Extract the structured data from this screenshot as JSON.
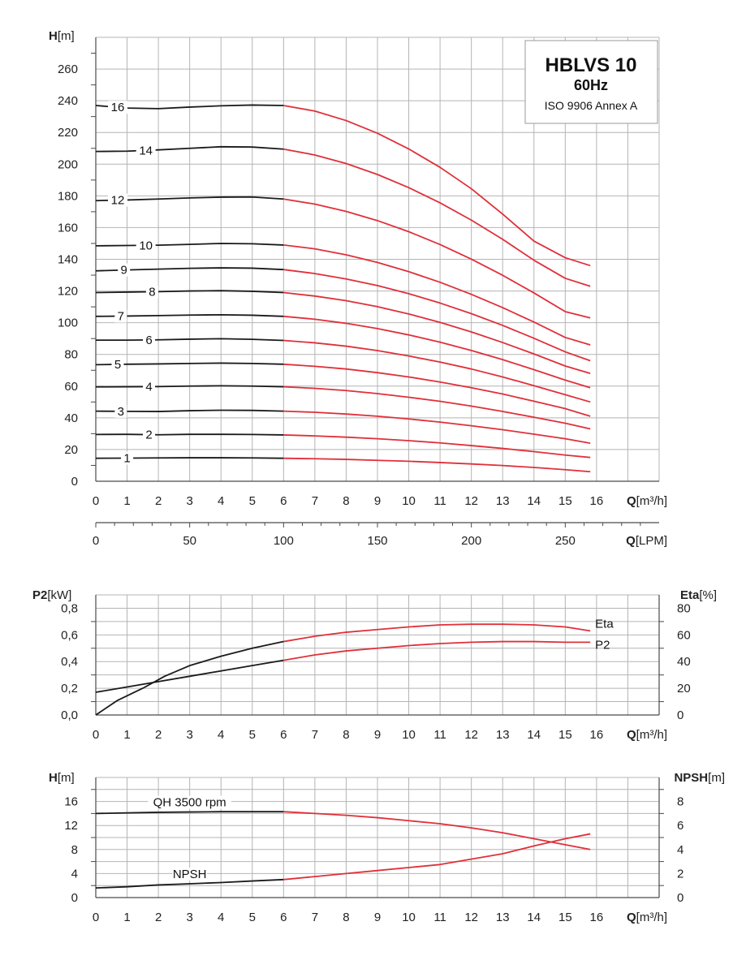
{
  "colors": {
    "shutoff": "#1a1a1a",
    "operating": "#e0303a"
  },
  "title": {
    "model": "HBLVS 10",
    "freq": "60Hz",
    "standard": "ISO 9906 Annex A"
  },
  "axis_labels": {
    "top_y": {
      "sym": "H",
      "unit": "[m]"
    },
    "top_x": {
      "sym": "Q",
      "unit": "[m³/h]"
    },
    "lpm_x": {
      "sym": "Q",
      "unit": "[LPM]"
    },
    "mid_left": {
      "sym": "P2",
      "unit": "[kW]"
    },
    "mid_right": {
      "sym": "Eta",
      "unit": "[%]"
    },
    "mid_x": {
      "sym": "Q",
      "unit": "[m³/h]"
    },
    "bot_left": {
      "sym": "H",
      "unit": "[m]"
    },
    "bot_right": {
      "sym": "NPSH",
      "unit": "[m]"
    },
    "bot_x": {
      "sym": "Q",
      "unit": "[m³/h]"
    }
  },
  "chart_data": [
    {
      "type": "line",
      "title": "HBLVS 10 60Hz",
      "xlabel": "Q[m³/h]",
      "ylabel": "H[m]",
      "xlim": [
        0,
        18
      ],
      "ylim": [
        0,
        280
      ],
      "x_ticks": [
        "0",
        "1",
        "2",
        "3",
        "4",
        "5",
        "6",
        "7",
        "8",
        "9",
        "10",
        "11",
        "12",
        "13",
        "14",
        "15",
        "16"
      ],
      "y_ticks": [
        "0",
        "20",
        "40",
        "60",
        "80",
        "100",
        "120",
        "140",
        "160",
        "180",
        "200",
        "220",
        "240",
        "260"
      ],
      "secondary_x": {
        "label": "Q[LPM]",
        "ticks": [
          "0",
          "50",
          "100",
          "150",
          "200",
          "250"
        ],
        "values": [
          0,
          50,
          100,
          150,
          200,
          250
        ]
      },
      "grid": true,
      "shutoff_until_x": 6,
      "x": [
        0,
        1,
        2,
        3,
        4,
        5,
        6,
        7,
        8,
        9,
        10,
        11,
        12,
        13,
        14,
        15,
        15.8
      ],
      "series": [
        {
          "name": "1",
          "values": [
            14.5,
            14.6,
            14.7,
            14.8,
            14.8,
            14.7,
            14.5,
            14.2,
            13.8,
            13.2,
            12.6,
            11.8,
            10.9,
            9.9,
            8.7,
            7.3,
            6
          ]
        },
        {
          "name": "2",
          "values": [
            29.5,
            29.6,
            29.3,
            29.6,
            29.6,
            29.5,
            29.2,
            28.6,
            27.8,
            26.8,
            25.6,
            24.2,
            22.5,
            20.7,
            18.7,
            16.5,
            15
          ]
        },
        {
          "name": "3",
          "values": [
            44.2,
            44.1,
            44,
            44.5,
            44.8,
            44.7,
            44.2,
            43.5,
            42.4,
            41,
            39.3,
            37.3,
            35,
            32.5,
            29.7,
            26.8,
            24
          ]
        },
        {
          "name": "4",
          "values": [
            59.5,
            59.6,
            59.7,
            60,
            60.2,
            60,
            59.6,
            58.6,
            57.2,
            55.3,
            53,
            50.4,
            47.4,
            44,
            40.4,
            36.6,
            33
          ]
        },
        {
          "name": "5",
          "values": [
            73.5,
            73.8,
            74,
            74.3,
            74.5,
            74.3,
            73.8,
            72.5,
            70.8,
            68.5,
            65.8,
            62.6,
            59,
            55,
            50.5,
            45.8,
            41
          ]
        },
        {
          "name": "6",
          "values": [
            89,
            89,
            89.2,
            89.6,
            89.9,
            89.5,
            88.8,
            87.3,
            85.2,
            82.4,
            79,
            75.2,
            70.8,
            65.8,
            60.3,
            54.6,
            50
          ]
        },
        {
          "name": "7",
          "values": [
            104,
            104.2,
            104.5,
            104.8,
            105,
            104.7,
            104,
            102.2,
            99.6,
            96.3,
            92.3,
            87.7,
            82.5,
            76.7,
            70.4,
            63.8,
            59
          ]
        },
        {
          "name": "8",
          "values": [
            119,
            119.3,
            119.6,
            120,
            120.2,
            119.8,
            119,
            116.8,
            113.9,
            110.1,
            105.5,
            100.2,
            94.2,
            87.5,
            80.3,
            72.7,
            68
          ]
        },
        {
          "name": "9",
          "values": [
            132.7,
            133.3,
            133.8,
            134.3,
            134.6,
            134.4,
            133.5,
            131,
            127.6,
            123.4,
            118.3,
            112.4,
            105.7,
            98.3,
            90.2,
            81.6,
            76
          ]
        },
        {
          "name": "10",
          "values": [
            148.5,
            148.7,
            148.9,
            149.4,
            150,
            149.8,
            149,
            146.6,
            142.8,
            138,
            132.2,
            125.5,
            117.9,
            109.5,
            100.4,
            90.7,
            86
          ]
        },
        {
          "name": "12",
          "values": [
            177,
            177.4,
            178,
            178.7,
            179.2,
            179.3,
            178,
            174.8,
            170.2,
            164.4,
            157.4,
            149.3,
            140.1,
            129.9,
            118.8,
            107,
            103
          ]
        },
        {
          "name": "14",
          "values": [
            208,
            208.2,
            209,
            210,
            211,
            210.8,
            209.5,
            205.8,
            200.4,
            193.5,
            185.2,
            175.6,
            164.7,
            152.6,
            139.4,
            128,
            123
          ]
        },
        {
          "name": "16",
          "values": [
            237,
            235.4,
            235,
            236,
            236.8,
            237.3,
            237,
            233.5,
            227.5,
            219.5,
            209.6,
            198,
            184.5,
            168.5,
            151.5,
            141,
            136
          ]
        }
      ]
    },
    {
      "type": "line",
      "xlabel": "Q[m³/h]",
      "ylabel": "P2[kW]",
      "y2label": "Eta[%]",
      "xlim": [
        0,
        18
      ],
      "ylim": [
        0,
        0.9
      ],
      "y2lim": [
        0,
        90
      ],
      "x_ticks": [
        "0",
        "1",
        "2",
        "3",
        "4",
        "5",
        "6",
        "7",
        "8",
        "9",
        "10",
        "11",
        "12",
        "13",
        "14",
        "15",
        "16"
      ],
      "y_ticks": [
        "0,0",
        "0,2",
        "0,4",
        "0,6",
        "0,8"
      ],
      "y2_ticks": [
        "0",
        "20",
        "40",
        "60",
        "80"
      ],
      "grid": true,
      "shutoff_until_x": 6,
      "series": [
        {
          "name": "Eta",
          "axis": "right",
          "x": [
            0,
            0.7,
            1.5,
            2.2,
            3,
            4,
            5,
            6,
            7,
            8,
            9,
            10,
            11,
            12,
            13,
            14,
            15,
            15.8
          ],
          "values": [
            0,
            11,
            20,
            29,
            37,
            44,
            50,
            55,
            59,
            62,
            64,
            66,
            67.5,
            68,
            68,
            67.5,
            66,
            63
          ]
        },
        {
          "name": "P2",
          "axis": "left",
          "x": [
            0,
            1,
            2,
            3,
            4,
            5,
            6,
            7,
            8,
            9,
            10,
            11,
            12,
            13,
            14,
            15,
            15.8
          ],
          "values": [
            0.17,
            0.21,
            0.25,
            0.29,
            0.33,
            0.37,
            0.41,
            0.45,
            0.48,
            0.5,
            0.52,
            0.535,
            0.545,
            0.55,
            0.55,
            0.545,
            0.545
          ]
        }
      ]
    },
    {
      "type": "line",
      "xlabel": "Q[m³/h]",
      "ylabel": "H[m]",
      "y2label": "NPSH[m]",
      "xlim": [
        0,
        18
      ],
      "ylim": [
        0,
        20
      ],
      "y2lim": [
        0,
        10
      ],
      "x_ticks": [
        "0",
        "1",
        "2",
        "3",
        "4",
        "5",
        "6",
        "7",
        "8",
        "9",
        "10",
        "11",
        "12",
        "13",
        "14",
        "15",
        "16"
      ],
      "y_ticks": [
        "0",
        "4",
        "8",
        "12",
        "16"
      ],
      "y2_ticks": [
        "0",
        "2",
        "4",
        "6",
        "8"
      ],
      "grid": true,
      "shutoff_until_x": 6,
      "series": [
        {
          "name": "QH 3500 rpm",
          "axis": "left",
          "x": [
            0,
            1,
            2,
            3,
            4,
            5,
            6,
            7,
            8,
            9,
            10,
            11,
            12,
            13,
            14,
            15,
            15.8
          ],
          "values": [
            14,
            14.1,
            14.2,
            14.25,
            14.3,
            14.3,
            14.3,
            14,
            13.7,
            13.3,
            12.8,
            12.3,
            11.6,
            10.8,
            9.8,
            8.8,
            8
          ]
        },
        {
          "name": "NPSH",
          "axis": "right",
          "x": [
            0,
            1,
            2,
            3,
            4,
            5,
            6,
            7,
            8,
            9,
            10,
            11,
            12,
            13,
            14,
            15,
            15.8
          ],
          "values": [
            0.8,
            0.9,
            1.05,
            1.15,
            1.25,
            1.38,
            1.5,
            1.75,
            2.0,
            2.25,
            2.5,
            2.75,
            3.2,
            3.65,
            4.3,
            4.9,
            5.3
          ]
        }
      ]
    }
  ]
}
